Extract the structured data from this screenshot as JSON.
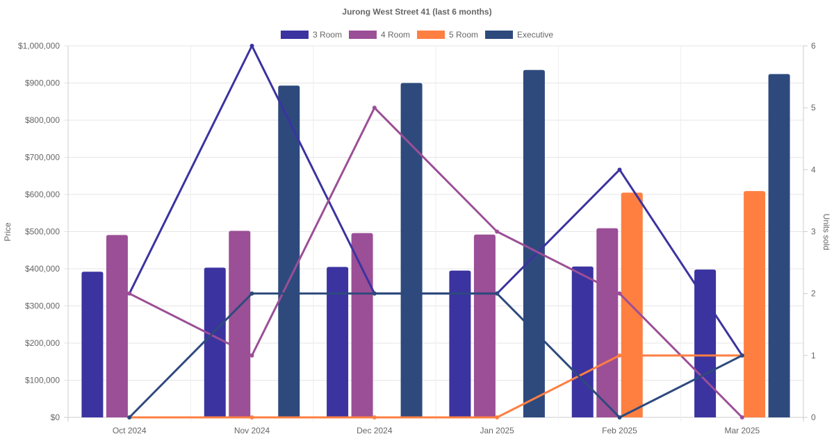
{
  "chart_data": {
    "type": "bar",
    "title": "Jurong West Street 41 (last 6 months)",
    "categories": [
      "Oct 2024",
      "Nov 2024",
      "Dec 2024",
      "Jan 2025",
      "Feb 2025",
      "Mar 2025"
    ],
    "ylabel": "Price",
    "y2label": "Units sold",
    "ylim": [
      0,
      1000000
    ],
    "y2lim": [
      0,
      6
    ],
    "yticks": [
      "$0",
      "$100,000",
      "$200,000",
      "$300,000",
      "$400,000",
      "$500,000",
      "$600,000",
      "$700,000",
      "$800,000",
      "$900,000",
      "$1,000,000"
    ],
    "y2ticks": [
      "0",
      "1",
      "2",
      "3",
      "4",
      "5",
      "6"
    ],
    "legend_position": "top-center",
    "grid": true,
    "series": [
      {
        "name": "3 Room",
        "color": "#3b33a0",
        "price": [
          392000,
          403000,
          405000,
          395000,
          406000,
          398000
        ],
        "units": [
          2,
          6,
          2,
          2,
          4,
          1
        ]
      },
      {
        "name": "4 Room",
        "color": "#9b4f96",
        "price": [
          491000,
          502000,
          496000,
          492000,
          509000,
          null
        ],
        "units": [
          2,
          1,
          5,
          3,
          2,
          0
        ]
      },
      {
        "name": "5 Room",
        "color": "#ff7f41",
        "price": [
          null,
          null,
          null,
          null,
          605000,
          609000
        ],
        "units": [
          0,
          0,
          0,
          0,
          1,
          1
        ]
      },
      {
        "name": "Executive",
        "color": "#2e4a7d",
        "price": [
          null,
          893000,
          900000,
          935000,
          null,
          924000
        ],
        "units": [
          0,
          2,
          2,
          2,
          0,
          1
        ]
      }
    ]
  }
}
